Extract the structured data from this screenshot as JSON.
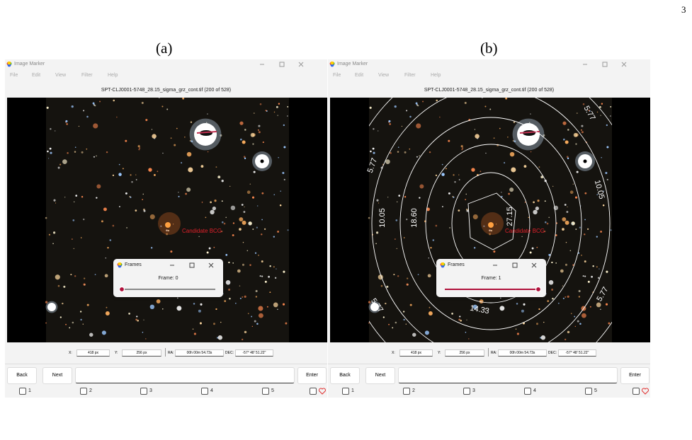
{
  "page_number": "3",
  "panels": [
    {
      "label": "(a)",
      "window_title": "Image Marker",
      "menu": [
        "File",
        "Edit",
        "View",
        "Filter",
        "Help"
      ],
      "image_title": "SPT-CLJ0001-5748_28.15_sigma_grz_cont.tif (200 of 528)",
      "marker_label": "Candidate BCG",
      "dialog": {
        "title": "Frames",
        "frame": "Frame: 0"
      },
      "fields": [
        {
          "label": "X:",
          "value": "418 px"
        },
        {
          "label": "Y:",
          "value": "256 px"
        },
        {
          "label": "RA:",
          "value": "00h 00m 54.73s"
        },
        {
          "label": "DEC:",
          "value": "-57° 48' 51.22''"
        }
      ],
      "buttons": [
        "Back",
        "Next",
        "Enter"
      ],
      "checkboxes": [
        "1",
        "2",
        "3",
        "4",
        "5"
      ]
    },
    {
      "label": "(b)",
      "window_title": "Image Marker",
      "menu": [
        "File",
        "Edit",
        "View",
        "Filter",
        "Help"
      ],
      "image_title": "SPT-CLJ0001-5748_28.15_sigma_grz_cont.tif (200 of 528)",
      "marker_label": "Candidate BCG",
      "dialog": {
        "title": "Frames",
        "frame": "Frame: 1"
      },
      "fields": [
        {
          "label": "X:",
          "value": "418 px"
        },
        {
          "label": "Y:",
          "value": "256 px"
        },
        {
          "label": "RA:",
          "value": "00h 00m 54.73s"
        },
        {
          "label": "DEC:",
          "value": "-57° 48' 51.22''"
        }
      ],
      "buttons": [
        "Back",
        "Next",
        "Enter"
      ],
      "checkboxes": [
        "1",
        "2",
        "3",
        "4",
        "5"
      ],
      "contour_labels": [
        "5.77",
        "10.05",
        "5.77",
        "10.05",
        "18.60",
        "27.15",
        "5.77",
        "14.33",
        "5.77"
      ]
    }
  ]
}
